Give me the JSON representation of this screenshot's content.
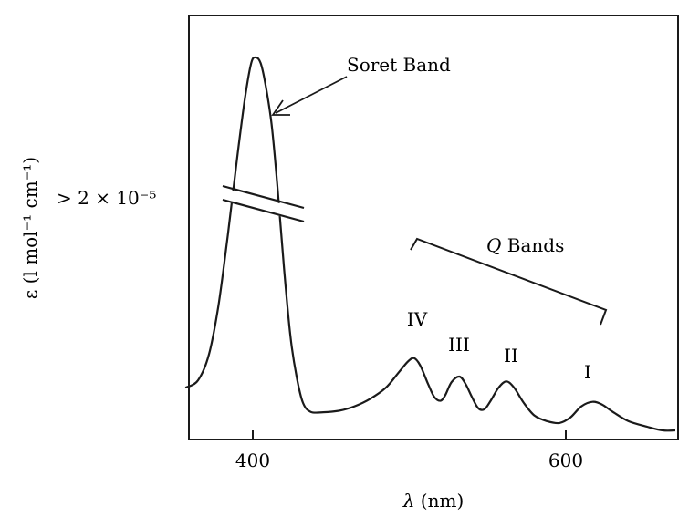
{
  "chart_data": {
    "type": "line",
    "title": "",
    "xlabel_symbol": "λ",
    "xlabel_unit": "(nm)",
    "ylabel": "ε (l mol⁻¹ cm⁻¹)",
    "xlim": [
      357,
      670
    ],
    "x_ticks": [
      400,
      600
    ],
    "y_break_label": "> 2 × 10⁻⁵",
    "grid": false,
    "series": [
      {
        "points": [
          [
            357,
            0.11
          ],
          [
            365,
            0.13
          ],
          [
            372,
            0.2
          ],
          [
            378,
            0.33
          ],
          [
            384,
            0.52
          ],
          [
            390,
            0.73
          ],
          [
            395,
            0.89
          ],
          [
            399,
            0.985
          ],
          [
            402,
            1.0
          ],
          [
            405,
            0.985
          ],
          [
            408,
            0.93
          ],
          [
            412,
            0.82
          ],
          [
            416,
            0.64
          ],
          [
            420,
            0.43
          ],
          [
            424,
            0.25
          ],
          [
            428,
            0.14
          ],
          [
            432,
            0.07
          ],
          [
            437,
            0.045
          ],
          [
            445,
            0.044
          ],
          [
            455,
            0.048
          ],
          [
            465,
            0.06
          ],
          [
            475,
            0.08
          ],
          [
            485,
            0.11
          ],
          [
            493,
            0.15
          ],
          [
            499,
            0.18
          ],
          [
            503,
            0.19
          ],
          [
            507,
            0.17
          ],
          [
            512,
            0.12
          ],
          [
            516,
            0.085
          ],
          [
            520,
            0.075
          ],
          [
            523,
            0.09
          ],
          [
            527,
            0.125
          ],
          [
            532,
            0.14
          ],
          [
            536,
            0.12
          ],
          [
            540,
            0.085
          ],
          [
            544,
            0.055
          ],
          [
            548,
            0.052
          ],
          [
            552,
            0.075
          ],
          [
            557,
            0.11
          ],
          [
            562,
            0.127
          ],
          [
            567,
            0.11
          ],
          [
            573,
            0.07
          ],
          [
            580,
            0.035
          ],
          [
            588,
            0.02
          ],
          [
            596,
            0.015
          ],
          [
            603,
            0.03
          ],
          [
            610,
            0.06
          ],
          [
            617,
            0.072
          ],
          [
            623,
            0.065
          ],
          [
            630,
            0.045
          ],
          [
            640,
            0.02
          ],
          [
            652,
            0.005
          ],
          [
            662,
            -0.005
          ],
          [
            670,
            -0.005
          ]
        ]
      }
    ],
    "annotations": [
      {
        "text": "Soret Band",
        "x": 423,
        "y": 0.98,
        "arrow_to": [
          407,
          0.85
        ]
      },
      {
        "text": "Q",
        "text_suffix": " Bands",
        "x": 552,
        "y": 0.47
      },
      {
        "text": "IV",
        "x": 503,
        "y": 0.28
      },
      {
        "text": "III",
        "x": 532,
        "y": 0.22
      },
      {
        "text": "II",
        "x": 562,
        "y": 0.2
      },
      {
        "text": "I",
        "x": 617,
        "y": 0.14
      }
    ]
  }
}
